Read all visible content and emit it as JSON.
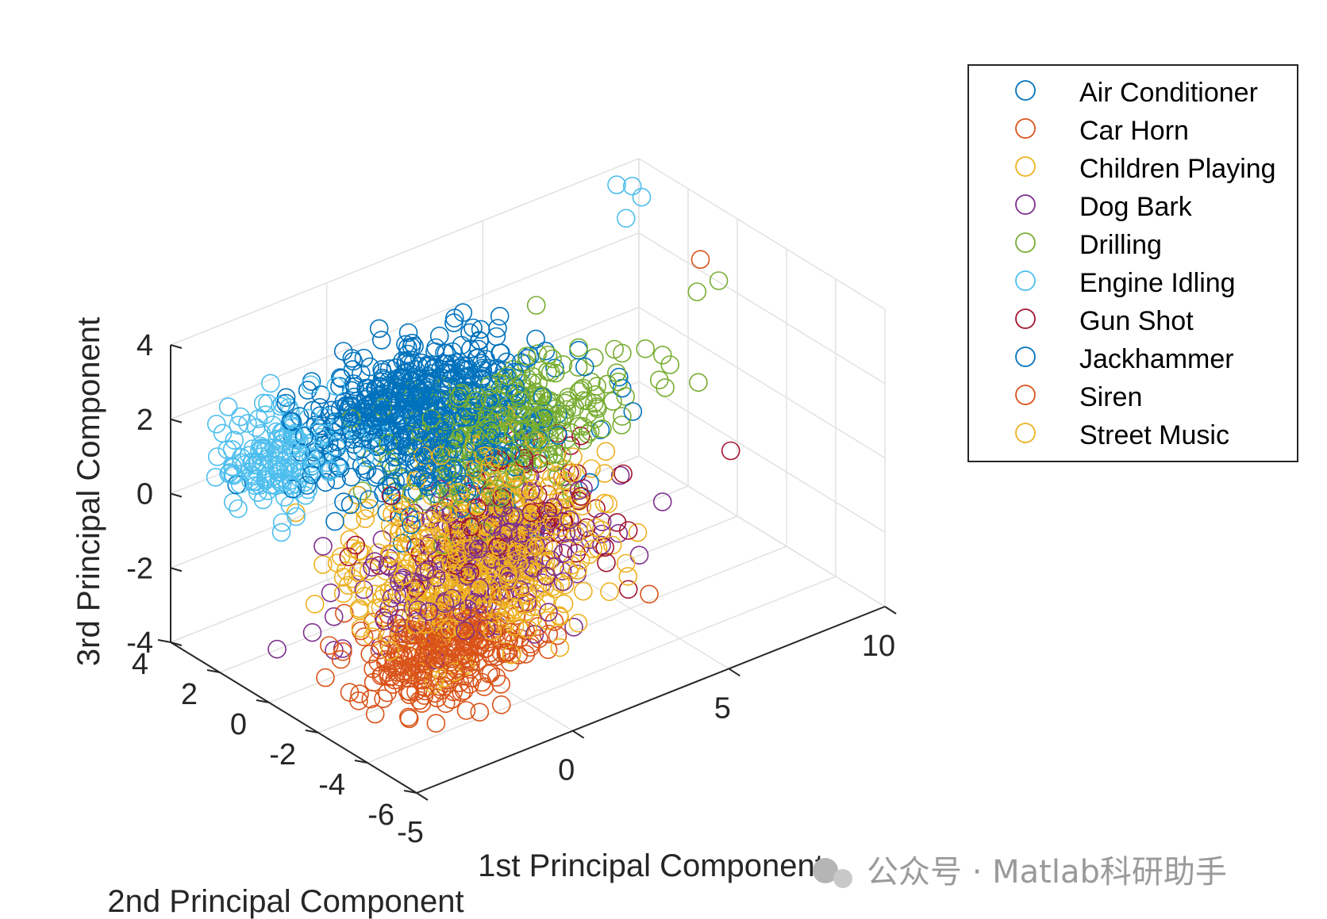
{
  "chart_data": {
    "type": "scatter3d",
    "xlabel": "1st Principal Component",
    "ylabel": "2nd Principal Component",
    "zlabel": "3rd Principal Component",
    "xlim": [
      -5,
      10
    ],
    "ylim": [
      -6,
      4
    ],
    "zlim": [
      -4,
      4
    ],
    "xticks": [
      -5,
      0,
      5,
      10
    ],
    "yticks": [
      -6,
      -4,
      -2,
      0,
      2,
      4
    ],
    "zticks": [
      -4,
      -2,
      0,
      2,
      4
    ],
    "grid": true,
    "legend_position": "top-right",
    "series": [
      {
        "name": "Air Conditioner",
        "color": "#0072BD",
        "cluster": {
          "center": [
            1.0,
            0.5,
            1.0
          ],
          "spread": [
            3.0,
            1.8,
            1.4
          ],
          "count": 320
        }
      },
      {
        "name": "Car Horn",
        "color": "#D95319",
        "cluster": {
          "center": [
            -1.5,
            -2.0,
            -3.0
          ],
          "spread": [
            2.2,
            1.4,
            0.8
          ],
          "count": 120
        }
      },
      {
        "name": "Children Playing",
        "color": "#EDB120",
        "cluster": {
          "center": [
            1.0,
            -1.0,
            -1.0
          ],
          "spread": [
            3.2,
            2.0,
            1.6
          ],
          "count": 320
        }
      },
      {
        "name": "Dog Bark",
        "color": "#7E2F8E",
        "cluster": {
          "center": [
            0.5,
            -1.5,
            -1.5
          ],
          "spread": [
            3.4,
            1.8,
            1.5
          ],
          "count": 240
        }
      },
      {
        "name": "Drilling",
        "color": "#77AC30",
        "cluster": {
          "center": [
            3.0,
            0.5,
            0.5
          ],
          "spread": [
            3.0,
            1.6,
            1.5
          ],
          "count": 320
        }
      },
      {
        "name": "Engine Idling",
        "color": "#4DBEEE",
        "cluster": {
          "center": [
            -3.0,
            2.0,
            1.2
          ],
          "spread": [
            1.6,
            1.2,
            1.2
          ],
          "count": 160
        }
      },
      {
        "name": "Gun Shot",
        "color": "#A2142F",
        "cluster": {
          "center": [
            2.0,
            -1.0,
            -1.0
          ],
          "spread": [
            3.0,
            2.0,
            1.6
          ],
          "count": 90
        }
      },
      {
        "name": "Jackhammer",
        "color": "#0072BD",
        "cluster": {
          "center": [
            0.5,
            1.5,
            1.8
          ],
          "spread": [
            3.0,
            1.2,
            0.9
          ],
          "count": 300
        }
      },
      {
        "name": "Siren",
        "color": "#D95319",
        "cluster": {
          "center": [
            -1.0,
            -2.5,
            -3.0
          ],
          "spread": [
            2.4,
            1.4,
            0.7
          ],
          "count": 160
        }
      },
      {
        "name": "Street Music",
        "color": "#EDB120",
        "cluster": {
          "center": [
            0.5,
            -1.5,
            -2.0
          ],
          "spread": [
            3.0,
            1.8,
            1.4
          ],
          "count": 240
        }
      }
    ],
    "highlight_points": [
      {
        "series": "Engine Idling",
        "points": [
          [
            8.5,
            3.0,
            4.2
          ],
          [
            9.0,
            3.0,
            4.0
          ],
          [
            9.3,
            3.0,
            3.6
          ],
          [
            8.8,
            3.0,
            3.2
          ]
        ]
      },
      {
        "series": "Drilling",
        "points": [
          [
            9.5,
            1.0,
            1.8
          ],
          [
            9.8,
            0.5,
            2.2
          ],
          [
            8.0,
            0.5,
            0.8
          ],
          [
            7.5,
            0.0,
            0.5
          ]
        ]
      },
      {
        "series": "Siren",
        "points": [
          [
            10.0,
            1.5,
            2.3
          ]
        ]
      },
      {
        "series": "Gun Shot",
        "points": [
          [
            9.0,
            -1.0,
            -1.5
          ]
        ]
      }
    ]
  },
  "watermark": "公众号 · Matlab科研助手"
}
